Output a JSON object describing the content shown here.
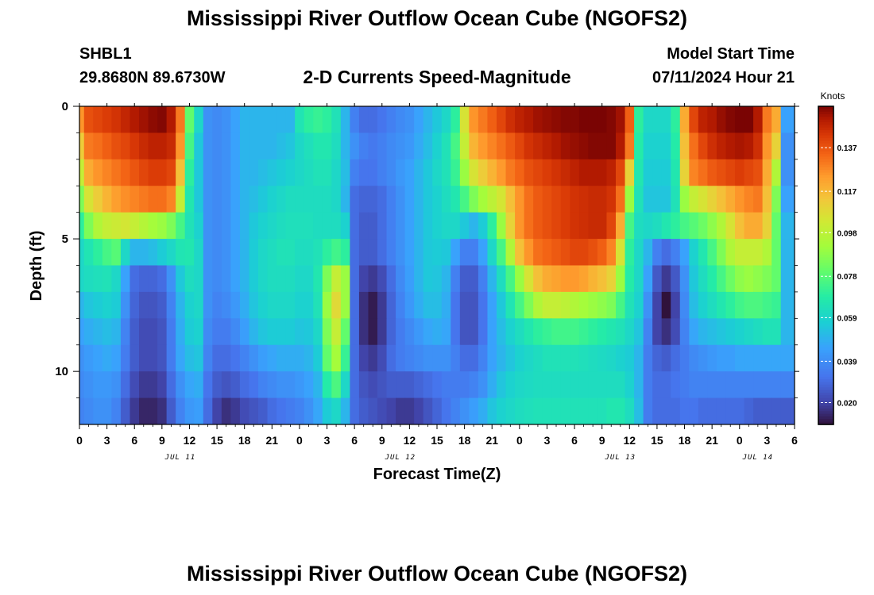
{
  "titles": {
    "top": "Mississippi River Outflow Ocean Cube (NGOFS2)",
    "bottom": "Mississippi River Outflow Ocean Cube (NGOFS2)"
  },
  "station": {
    "id": "SHBL1",
    "coords": "29.8680N  89.6730W"
  },
  "model": {
    "label": "Model Start Time",
    "start": "07/11/2024 Hour 21"
  },
  "chart_data": {
    "type": "heatmap",
    "title": "2-D Currents Speed-Magnitude",
    "xlabel": "Forecast Time(Z)",
    "ylabel": "Depth (ft)",
    "x_ticks": [
      "0",
      "3",
      "6",
      "9",
      "12",
      "15",
      "18",
      "21",
      "0",
      "3",
      "6",
      "9",
      "12",
      "15",
      "18",
      "21",
      "0",
      "3",
      "6",
      "9",
      "12",
      "15",
      "18",
      "21",
      "0",
      "3",
      "6"
    ],
    "day_labels": [
      {
        "label": "JUL 11",
        "at_hour": 11
      },
      {
        "label": "JUL 12",
        "at_hour": 35
      },
      {
        "label": "JUL 13",
        "at_hour": 59
      },
      {
        "label": "JUL 14",
        "at_hour": 74
      }
    ],
    "y_ticks": [
      "0",
      "5",
      "10"
    ],
    "ylim": [
      12,
      0
    ],
    "xlim_hours": [
      0,
      78
    ],
    "colorbar": {
      "unit": "Knots",
      "ticks": [
        "0.137",
        "0.117",
        "0.098",
        "0.078",
        "0.059",
        "0.039",
        "0.020"
      ],
      "range": [
        0.01,
        0.156
      ]
    },
    "hours": [
      0,
      1,
      2,
      3,
      4,
      5,
      6,
      7,
      8,
      9,
      10,
      11,
      12,
      13,
      14,
      15,
      16,
      17,
      18,
      19,
      20,
      21,
      22,
      23,
      24,
      25,
      26,
      27,
      28,
      29,
      30,
      31,
      32,
      33,
      34,
      35,
      36,
      37,
      38,
      39,
      40,
      41,
      42,
      43,
      44,
      45,
      46,
      47,
      48,
      49,
      50,
      51,
      52,
      53,
      54,
      55,
      56,
      57,
      58,
      59,
      60,
      61,
      62,
      63,
      64,
      65,
      66,
      67,
      68,
      69,
      70,
      71,
      72,
      73,
      74,
      75,
      76,
      77,
      78
    ],
    "depths": [
      0.5,
      1.5,
      2.5,
      3.5,
      4.5,
      5.5,
      6.5,
      7.5,
      8.5,
      9.5,
      10.5,
      11.5
    ],
    "values": [
      [
        0.125,
        0.138,
        0.14,
        0.142,
        0.144,
        0.147,
        0.15,
        0.152,
        0.154,
        0.155,
        0.15,
        0.13,
        0.08,
        0.06,
        0.04,
        0.038,
        0.04,
        0.045,
        0.05,
        0.05,
        0.05,
        0.05,
        0.05,
        0.05,
        0.065,
        0.07,
        0.072,
        0.07,
        0.064,
        0.05,
        0.035,
        0.03,
        0.03,
        0.032,
        0.035,
        0.038,
        0.04,
        0.045,
        0.05,
        0.055,
        0.06,
        0.07,
        0.105,
        0.125,
        0.13,
        0.135,
        0.14,
        0.145,
        0.148,
        0.15,
        0.152,
        0.153,
        0.154,
        0.155,
        0.155,
        0.156,
        0.156,
        0.156,
        0.155,
        0.152,
        0.135,
        0.07,
        0.06,
        0.06,
        0.06,
        0.07,
        0.12,
        0.14,
        0.148,
        0.15,
        0.153,
        0.155,
        0.156,
        0.156,
        0.15,
        0.13,
        0.12,
        0.045,
        0.045
      ],
      [
        0.112,
        0.13,
        0.132,
        0.135,
        0.138,
        0.14,
        0.143,
        0.146,
        0.148,
        0.148,
        0.146,
        0.125,
        0.075,
        0.055,
        0.04,
        0.038,
        0.04,
        0.045,
        0.05,
        0.05,
        0.05,
        0.05,
        0.052,
        0.054,
        0.06,
        0.063,
        0.066,
        0.066,
        0.062,
        0.05,
        0.04,
        0.035,
        0.033,
        0.035,
        0.038,
        0.04,
        0.042,
        0.047,
        0.052,
        0.058,
        0.064,
        0.075,
        0.1,
        0.118,
        0.124,
        0.128,
        0.132,
        0.136,
        0.14,
        0.144,
        0.146,
        0.148,
        0.15,
        0.152,
        0.153,
        0.154,
        0.155,
        0.155,
        0.155,
        0.15,
        0.13,
        0.068,
        0.058,
        0.058,
        0.058,
        0.068,
        0.115,
        0.132,
        0.14,
        0.145,
        0.148,
        0.15,
        0.151,
        0.15,
        0.145,
        0.125,
        0.11,
        0.04,
        0.04
      ],
      [
        0.1,
        0.12,
        0.125,
        0.128,
        0.131,
        0.134,
        0.137,
        0.14,
        0.142,
        0.142,
        0.14,
        0.115,
        0.07,
        0.055,
        0.04,
        0.038,
        0.04,
        0.045,
        0.05,
        0.05,
        0.052,
        0.054,
        0.056,
        0.058,
        0.06,
        0.062,
        0.064,
        0.064,
        0.06,
        0.052,
        0.035,
        0.032,
        0.032,
        0.035,
        0.038,
        0.042,
        0.045,
        0.05,
        0.055,
        0.06,
        0.064,
        0.072,
        0.09,
        0.105,
        0.112,
        0.118,
        0.124,
        0.13,
        0.134,
        0.138,
        0.14,
        0.142,
        0.144,
        0.146,
        0.148,
        0.15,
        0.15,
        0.15,
        0.148,
        0.14,
        0.11,
        0.066,
        0.056,
        0.056,
        0.056,
        0.066,
        0.11,
        0.128,
        0.132,
        0.136,
        0.138,
        0.14,
        0.142,
        0.14,
        0.138,
        0.12,
        0.095,
        0.04,
        0.04
      ],
      [
        0.085,
        0.105,
        0.112,
        0.118,
        0.123,
        0.126,
        0.128,
        0.13,
        0.132,
        0.132,
        0.128,
        0.1,
        0.066,
        0.055,
        0.04,
        0.038,
        0.04,
        0.045,
        0.05,
        0.052,
        0.055,
        0.058,
        0.06,
        0.062,
        0.062,
        0.062,
        0.062,
        0.062,
        0.06,
        0.05,
        0.03,
        0.028,
        0.028,
        0.03,
        0.035,
        0.04,
        0.045,
        0.05,
        0.055,
        0.058,
        0.062,
        0.066,
        0.075,
        0.085,
        0.092,
        0.098,
        0.104,
        0.115,
        0.125,
        0.132,
        0.136,
        0.138,
        0.14,
        0.142,
        0.144,
        0.145,
        0.146,
        0.146,
        0.144,
        0.132,
        0.09,
        0.064,
        0.054,
        0.054,
        0.054,
        0.064,
        0.09,
        0.1,
        0.105,
        0.11,
        0.115,
        0.12,
        0.125,
        0.128,
        0.13,
        0.115,
        0.085,
        0.045,
        0.045
      ],
      [
        0.07,
        0.085,
        0.095,
        0.1,
        0.102,
        0.104,
        0.1,
        0.096,
        0.092,
        0.09,
        0.085,
        0.075,
        0.064,
        0.058,
        0.04,
        0.038,
        0.04,
        0.045,
        0.05,
        0.055,
        0.058,
        0.06,
        0.062,
        0.063,
        0.063,
        0.063,
        0.062,
        0.062,
        0.062,
        0.058,
        0.03,
        0.026,
        0.026,
        0.03,
        0.035,
        0.04,
        0.045,
        0.05,
        0.055,
        0.058,
        0.06,
        0.06,
        0.055,
        0.05,
        0.056,
        0.07,
        0.09,
        0.11,
        0.125,
        0.132,
        0.136,
        0.138,
        0.14,
        0.142,
        0.144,
        0.145,
        0.146,
        0.146,
        0.14,
        0.12,
        0.075,
        0.062,
        0.06,
        0.062,
        0.066,
        0.07,
        0.075,
        0.078,
        0.082,
        0.088,
        0.095,
        0.105,
        0.115,
        0.12,
        0.12,
        0.11,
        0.08,
        0.05,
        0.05
      ],
      [
        0.06,
        0.065,
        0.07,
        0.075,
        0.078,
        0.06,
        0.05,
        0.05,
        0.052,
        0.056,
        0.06,
        0.065,
        0.066,
        0.06,
        0.04,
        0.038,
        0.04,
        0.045,
        0.05,
        0.056,
        0.06,
        0.062,
        0.064,
        0.064,
        0.062,
        0.062,
        0.064,
        0.07,
        0.074,
        0.07,
        0.03,
        0.026,
        0.026,
        0.03,
        0.035,
        0.04,
        0.045,
        0.05,
        0.055,
        0.056,
        0.055,
        0.045,
        0.035,
        0.035,
        0.045,
        0.06,
        0.075,
        0.095,
        0.115,
        0.125,
        0.132,
        0.134,
        0.136,
        0.138,
        0.14,
        0.14,
        0.138,
        0.135,
        0.128,
        0.105,
        0.07,
        0.06,
        0.05,
        0.035,
        0.03,
        0.035,
        0.045,
        0.058,
        0.066,
        0.075,
        0.085,
        0.095,
        0.1,
        0.1,
        0.1,
        0.095,
        0.08,
        0.05,
        0.05
      ],
      [
        0.06,
        0.062,
        0.063,
        0.064,
        0.06,
        0.045,
        0.03,
        0.028,
        0.028,
        0.03,
        0.04,
        0.055,
        0.062,
        0.06,
        0.04,
        0.038,
        0.04,
        0.045,
        0.05,
        0.056,
        0.06,
        0.062,
        0.062,
        0.062,
        0.06,
        0.06,
        0.066,
        0.085,
        0.1,
        0.09,
        0.03,
        0.02,
        0.018,
        0.022,
        0.03,
        0.038,
        0.044,
        0.05,
        0.055,
        0.054,
        0.05,
        0.035,
        0.026,
        0.026,
        0.035,
        0.05,
        0.062,
        0.075,
        0.09,
        0.105,
        0.115,
        0.12,
        0.122,
        0.124,
        0.124,
        0.122,
        0.118,
        0.115,
        0.11,
        0.09,
        0.068,
        0.06,
        0.045,
        0.025,
        0.018,
        0.025,
        0.04,
        0.055,
        0.062,
        0.068,
        0.075,
        0.082,
        0.088,
        0.09,
        0.088,
        0.085,
        0.08,
        0.05,
        0.05
      ],
      [
        0.05,
        0.054,
        0.056,
        0.058,
        0.056,
        0.04,
        0.028,
        0.024,
        0.024,
        0.026,
        0.036,
        0.05,
        0.058,
        0.06,
        0.04,
        0.036,
        0.038,
        0.042,
        0.048,
        0.054,
        0.058,
        0.06,
        0.06,
        0.06,
        0.058,
        0.058,
        0.064,
        0.09,
        0.108,
        0.09,
        0.03,
        0.016,
        0.012,
        0.018,
        0.028,
        0.036,
        0.042,
        0.048,
        0.052,
        0.052,
        0.048,
        0.032,
        0.024,
        0.024,
        0.032,
        0.045,
        0.055,
        0.065,
        0.075,
        0.085,
        0.095,
        0.1,
        0.1,
        0.098,
        0.095,
        0.092,
        0.09,
        0.088,
        0.085,
        0.075,
        0.064,
        0.058,
        0.04,
        0.02,
        0.008,
        0.02,
        0.038,
        0.052,
        0.058,
        0.062,
        0.066,
        0.07,
        0.074,
        0.076,
        0.076,
        0.074,
        0.072,
        0.05,
        0.05
      ],
      [
        0.045,
        0.048,
        0.05,
        0.052,
        0.05,
        0.036,
        0.026,
        0.022,
        0.022,
        0.024,
        0.034,
        0.048,
        0.056,
        0.058,
        0.038,
        0.034,
        0.034,
        0.038,
        0.044,
        0.05,
        0.054,
        0.056,
        0.056,
        0.056,
        0.054,
        0.055,
        0.06,
        0.085,
        0.1,
        0.08,
        0.03,
        0.016,
        0.012,
        0.018,
        0.028,
        0.034,
        0.038,
        0.042,
        0.046,
        0.048,
        0.046,
        0.032,
        0.024,
        0.024,
        0.032,
        0.045,
        0.052,
        0.058,
        0.062,
        0.066,
        0.07,
        0.072,
        0.074,
        0.074,
        0.074,
        0.072,
        0.07,
        0.068,
        0.066,
        0.064,
        0.06,
        0.054,
        0.036,
        0.02,
        0.016,
        0.022,
        0.036,
        0.046,
        0.05,
        0.052,
        0.054,
        0.056,
        0.058,
        0.06,
        0.062,
        0.064,
        0.064,
        0.05,
        0.05
      ],
      [
        0.04,
        0.043,
        0.045,
        0.047,
        0.045,
        0.034,
        0.026,
        0.022,
        0.022,
        0.024,
        0.034,
        0.046,
        0.052,
        0.054,
        0.036,
        0.03,
        0.03,
        0.032,
        0.036,
        0.04,
        0.044,
        0.046,
        0.048,
        0.048,
        0.048,
        0.05,
        0.056,
        0.08,
        0.092,
        0.072,
        0.03,
        0.02,
        0.018,
        0.022,
        0.03,
        0.034,
        0.036,
        0.038,
        0.04,
        0.04,
        0.04,
        0.035,
        0.03,
        0.03,
        0.036,
        0.045,
        0.05,
        0.054,
        0.058,
        0.06,
        0.062,
        0.064,
        0.064,
        0.064,
        0.064,
        0.063,
        0.062,
        0.061,
        0.06,
        0.058,
        0.056,
        0.05,
        0.034,
        0.028,
        0.026,
        0.03,
        0.034,
        0.038,
        0.04,
        0.042,
        0.044,
        0.044,
        0.046,
        0.046,
        0.046,
        0.046,
        0.046,
        0.046,
        0.046
      ],
      [
        0.038,
        0.04,
        0.042,
        0.042,
        0.04,
        0.03,
        0.022,
        0.018,
        0.018,
        0.02,
        0.03,
        0.04,
        0.046,
        0.048,
        0.032,
        0.026,
        0.024,
        0.026,
        0.03,
        0.032,
        0.036,
        0.038,
        0.04,
        0.04,
        0.042,
        0.045,
        0.05,
        0.068,
        0.076,
        0.06,
        0.03,
        0.024,
        0.022,
        0.024,
        0.026,
        0.026,
        0.026,
        0.028,
        0.03,
        0.032,
        0.034,
        0.034,
        0.034,
        0.036,
        0.04,
        0.048,
        0.054,
        0.058,
        0.06,
        0.061,
        0.062,
        0.062,
        0.062,
        0.062,
        0.062,
        0.062,
        0.062,
        0.062,
        0.062,
        0.062,
        0.058,
        0.05,
        0.034,
        0.03,
        0.03,
        0.032,
        0.034,
        0.036,
        0.036,
        0.036,
        0.036,
        0.036,
        0.036,
        0.036,
        0.036,
        0.036,
        0.036,
        0.036,
        0.036
      ],
      [
        0.036,
        0.038,
        0.04,
        0.04,
        0.036,
        0.026,
        0.018,
        0.014,
        0.014,
        0.016,
        0.026,
        0.036,
        0.042,
        0.044,
        0.03,
        0.02,
        0.016,
        0.018,
        0.022,
        0.024,
        0.026,
        0.03,
        0.032,
        0.034,
        0.036,
        0.04,
        0.046,
        0.056,
        0.06,
        0.05,
        0.03,
        0.026,
        0.024,
        0.022,
        0.02,
        0.018,
        0.018,
        0.02,
        0.024,
        0.028,
        0.032,
        0.036,
        0.04,
        0.044,
        0.048,
        0.054,
        0.058,
        0.06,
        0.062,
        0.063,
        0.064,
        0.064,
        0.064,
        0.064,
        0.064,
        0.064,
        0.064,
        0.064,
        0.066,
        0.066,
        0.062,
        0.052,
        0.034,
        0.03,
        0.03,
        0.03,
        0.032,
        0.032,
        0.03,
        0.03,
        0.03,
        0.03,
        0.03,
        0.028,
        0.026,
        0.026,
        0.026,
        0.026,
        0.026
      ]
    ]
  }
}
